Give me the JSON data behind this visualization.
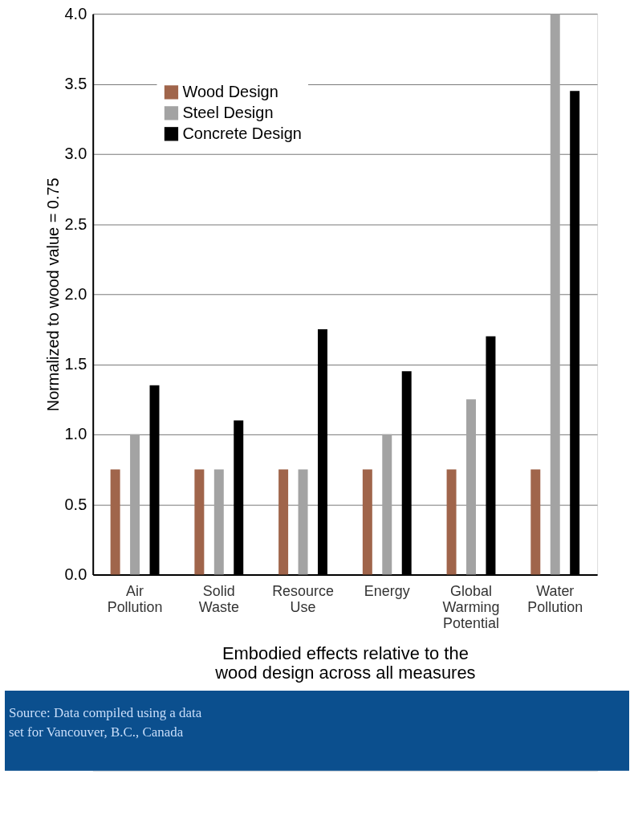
{
  "chart_data": {
    "type": "bar",
    "ylabel": "Normalized to wood value = 0.75",
    "xlabel": "Embodied effects relative to the wood design across all measures",
    "categories": [
      "Air Pollution",
      "Solid Waste",
      "Resource Use",
      "Energy",
      "Global Warming Potential",
      "Water Pollution"
    ],
    "series": [
      {
        "name": "Wood Design",
        "color": "#a0654b",
        "values": [
          0.75,
          0.75,
          0.75,
          0.75,
          0.75,
          0.75
        ]
      },
      {
        "name": "Steel Design",
        "color": "#a3a3a3",
        "values": [
          1.0,
          0.75,
          0.75,
          1.0,
          1.25,
          4.0
        ]
      },
      {
        "name": "Concrete Design",
        "color": "#000000",
        "values": [
          1.35,
          1.1,
          1.75,
          1.45,
          1.7,
          3.45
        ]
      }
    ],
    "ylim": [
      0,
      4
    ],
    "yticks": [
      {
        "value": 0,
        "label": "0.0"
      },
      {
        "value": 0.5,
        "label": "0.5"
      },
      {
        "value": 1,
        "label": "1.0"
      },
      {
        "value": 1.5,
        "label": "1.5"
      },
      {
        "value": 2,
        "label": "2.0"
      },
      {
        "value": 2.5,
        "label": "2.5"
      },
      {
        "value": 3,
        "label": "3.0"
      },
      {
        "value": 3.5,
        "label": "3.5"
      },
      {
        "value": 4,
        "label": "4.0"
      }
    ],
    "grid": "y",
    "legend": "top left",
    "annotations": [
      "Source: Data compiled using a data set for Vancouver, B.C., Canada"
    ]
  }
}
